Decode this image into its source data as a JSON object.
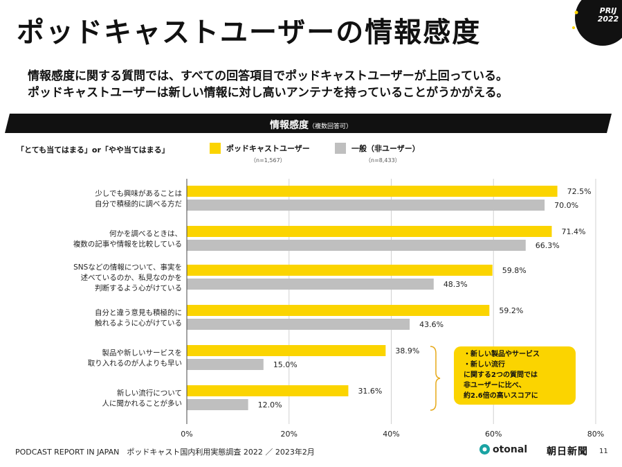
{
  "page": {
    "title": "ポッドキャストユーザーの情報感度",
    "badge_line1": "PRIJ",
    "badge_line2": "2022",
    "subtitle_line1": "情報感度に関する質問では、すべての回答項目でポッドキャストユーザーが上回っている。",
    "subtitle_line2": "ポッドキャストユーザーは新しい情報に対し高いアンテナを持っていることがうかがえる。",
    "banner_title": "情報感度",
    "banner_note": "（複数回答可）",
    "criteria": "「とても当てはまる」or「やや当てはまる」",
    "footer_text": "PODCAST REPORT IN JAPAN　ポッドキャスト国内利用実態調査 2022 ／ 2023年2月",
    "otonal_logo": "otonal",
    "asahi_logo": "朝日新聞",
    "page_number": "11"
  },
  "callout": {
    "lines": [
      "・新しい製品やサービス",
      "・新しい流行",
      "に関する2つの質問では",
      "非ユーザーに比べ、",
      "約2.6倍の高いスコアに"
    ]
  },
  "colors": {
    "podcast": "#fbd400",
    "general": "#bfbfbf",
    "banner": "#111111",
    "accent": "#fbd400",
    "bracket": "#e6a817"
  },
  "chart_data": {
    "type": "bar",
    "orientation": "horizontal",
    "title": "情報感度",
    "categories": [
      [
        "少しでも興味があることは",
        "自分で積極的に調べる方だ"
      ],
      [
        "何かを調べるときは、",
        "複数の記事や情報を比較している"
      ],
      [
        "SNSなどの情報について、事実を",
        "述べているのか、私見なのかを",
        "判断するよう心がけている"
      ],
      [
        "自分と違う意見も積極的に",
        "触れるように心がけている"
      ],
      [
        "製品や新しいサービスを",
        "取り入れるのが人よりも早い"
      ],
      [
        "新しい流行について",
        "人に聞かれることが多い"
      ]
    ],
    "series": [
      {
        "name": "ポッドキャストユーザー",
        "n": "（n=1,567）",
        "values": [
          72.5,
          71.4,
          59.8,
          59.2,
          38.9,
          31.6
        ],
        "labels": [
          "72.5%",
          "71.4%",
          "59.8%",
          "59.2%",
          "38.9%",
          "31.6%"
        ]
      },
      {
        "name": "一般（非ユーザー）",
        "n": "（n=8,433）",
        "values": [
          70.0,
          66.3,
          48.3,
          43.6,
          15.0,
          12.0
        ],
        "labels": [
          "70.0%",
          "66.3%",
          "48.3%",
          "43.6%",
          "15.0%",
          "12.0%"
        ]
      }
    ],
    "xlim": [
      0,
      80
    ],
    "xticks": [
      0,
      20,
      40,
      60,
      80
    ],
    "xtick_labels": [
      "0%",
      "20%",
      "40%",
      "60%",
      "80%"
    ],
    "grid": true
  }
}
